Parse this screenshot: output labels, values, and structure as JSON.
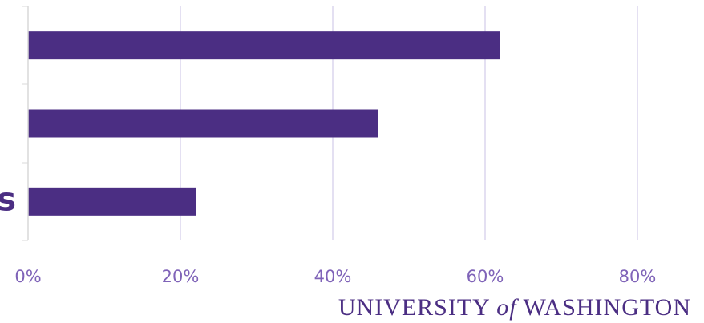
{
  "chart_data": {
    "type": "bar",
    "orientation": "horizontal",
    "categories": [
      null,
      null,
      "s"
    ],
    "values": [
      62,
      46,
      22
    ],
    "color": "#4b2e83",
    "xlim": [
      0,
      88
    ],
    "xticks": [
      {
        "value": 0,
        "label": "0%"
      },
      {
        "value": 20,
        "label": "20%"
      },
      {
        "value": 40,
        "label": "40%"
      },
      {
        "value": 60,
        "label": "60%"
      },
      {
        "value": 80,
        "label": "80%"
      }
    ],
    "grid": true
  },
  "logo": {
    "left": "UNIVERSITY",
    "middle": "of",
    "right": "WASHINGTON"
  }
}
